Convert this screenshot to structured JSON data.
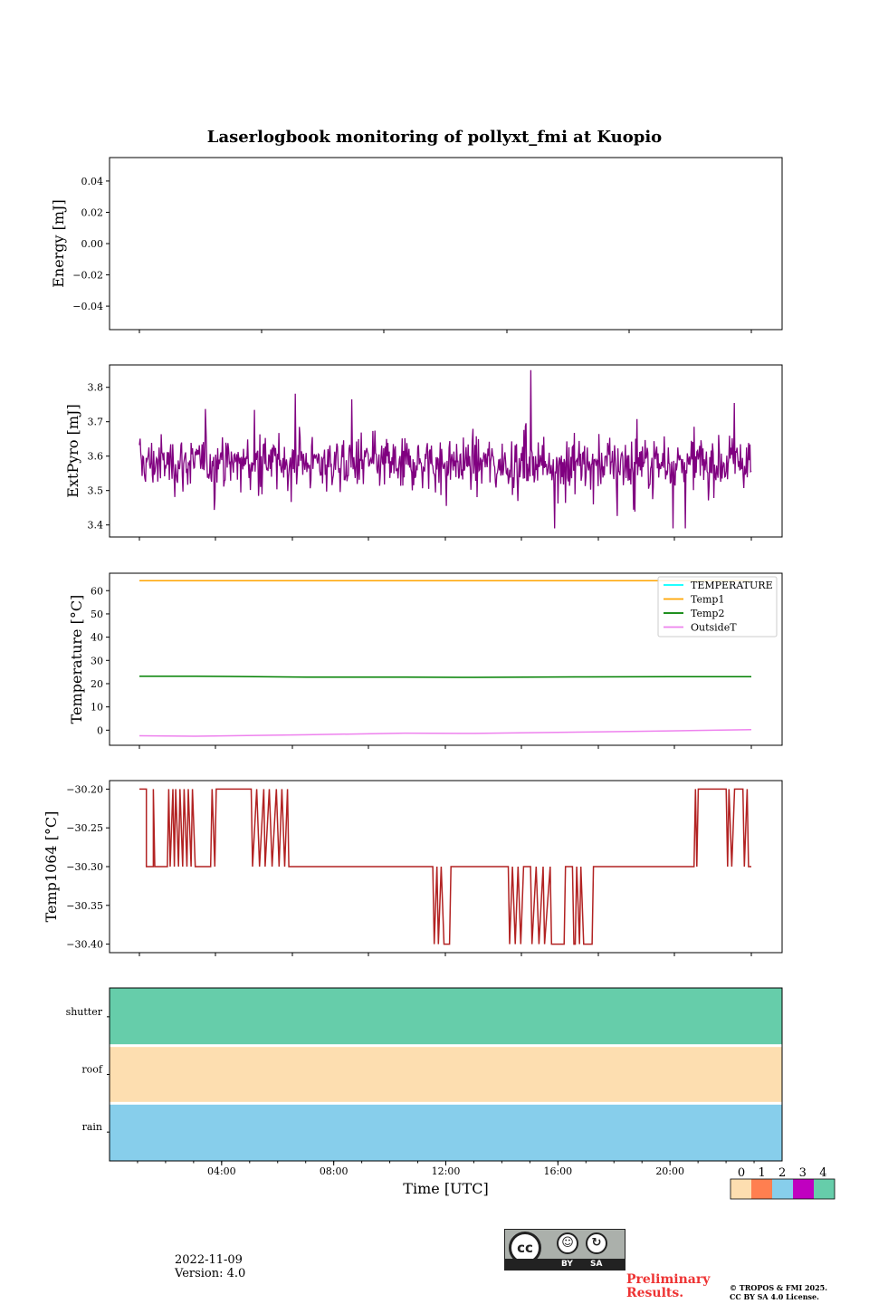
{
  "title": "Laserlogbook monitoring of pollyxt_fmi at Kuopio",
  "footer": {
    "date": "2022-11-09",
    "version": "Version: 4.0",
    "preliminary": "Preliminary\nResults.",
    "copyright": "© TROPOS & FMI 2025.\nCC BY SA 4.0 License.",
    "license_by": "BY",
    "license_sa": "SA",
    "license_cc": "cc"
  },
  "chart_data": [
    {
      "type": "line",
      "id": "energy",
      "ylabel": "Energy [mJ]",
      "ylim": [
        -0.055,
        0.055
      ],
      "yticks": [
        0.04,
        0.02,
        0.0,
        -0.02,
        -0.04
      ],
      "ytick_labels": [
        "0.04",
        "0.02",
        "0.00",
        "−0.02",
        "−0.04"
      ],
      "series": []
    },
    {
      "type": "line",
      "id": "extpyro",
      "ylabel": "ExtPyro [mJ]",
      "ylim": [
        3.365,
        3.865
      ],
      "yticks": [
        3.8,
        3.7,
        3.6,
        3.5,
        3.4
      ],
      "ytick_labels": [
        "3.8",
        "3.7",
        "3.6",
        "3.5",
        "3.4"
      ],
      "x_range_hours": [
        1.0,
        22.9
      ],
      "series": [
        {
          "name": "ExtPyro",
          "color": "#800080",
          "mean": 3.58,
          "min": 3.39,
          "max": 3.85,
          "n_samples": 900
        }
      ]
    },
    {
      "type": "line",
      "id": "temperature",
      "ylabel": "Temperature [°C]",
      "ylim": [
        -6.5,
        67.5
      ],
      "yticks": [
        60,
        50,
        40,
        30,
        20,
        10,
        0
      ],
      "ytick_labels": [
        "60",
        "50",
        "40",
        "30",
        "20",
        "10",
        "0"
      ],
      "x": [
        1,
        3,
        7,
        10.5,
        13,
        17,
        20,
        22.9
      ],
      "series": [
        {
          "name": "TEMPERATURE",
          "color": "#00ffff",
          "values": [
            null,
            null,
            null,
            null,
            null,
            null,
            null,
            null
          ]
        },
        {
          "name": "Temp1",
          "color": "#ffa500",
          "values": [
            64.3,
            64.3,
            64.3,
            64.3,
            64.3,
            64.3,
            64.3,
            64.3
          ]
        },
        {
          "name": "Temp2",
          "color": "#008000",
          "values": [
            23.2,
            23.2,
            22.8,
            22.8,
            22.7,
            22.9,
            23.0,
            23.0
          ]
        },
        {
          "name": "OutsideT",
          "color": "#ee82ee",
          "values": [
            -2.4,
            -2.6,
            -2.0,
            -1.3,
            -1.4,
            -0.8,
            -0.3,
            0.2
          ]
        }
      ],
      "legend": "top-right"
    },
    {
      "type": "line",
      "id": "temp1064",
      "ylabel": "Temp1064 [°C]",
      "ylim": [
        -30.411,
        -30.189
      ],
      "yticks": [
        -30.2,
        -30.25,
        -30.3,
        -30.35,
        -30.4
      ],
      "ytick_labels": [
        "−30.20",
        "−30.25",
        "−30.30",
        "−30.35",
        "−30.40"
      ],
      "series": [
        {
          "name": "Temp1064",
          "color": "#b22222",
          "step_points": [
            [
              1.0,
              -30.2
            ],
            [
              1.25,
              -30.2
            ],
            [
              1.25,
              -30.3
            ],
            [
              1.5,
              -30.3
            ],
            [
              1.5,
              -30.2
            ],
            [
              1.55,
              -30.3
            ],
            [
              2.0,
              -30.3
            ],
            [
              2.05,
              -30.2
            ],
            [
              2.1,
              -30.3
            ],
            [
              2.2,
              -30.2
            ],
            [
              2.25,
              -30.3
            ],
            [
              2.3,
              -30.2
            ],
            [
              2.4,
              -30.3
            ],
            [
              2.45,
              -30.2
            ],
            [
              2.55,
              -30.3
            ],
            [
              2.6,
              -30.2
            ],
            [
              2.7,
              -30.3
            ],
            [
              2.75,
              -30.2
            ],
            [
              2.85,
              -30.3
            ],
            [
              2.9,
              -30.2
            ],
            [
              3.0,
              -30.3
            ],
            [
              3.55,
              -30.3
            ],
            [
              3.6,
              -30.2
            ],
            [
              3.7,
              -30.3
            ],
            [
              3.75,
              -30.2
            ],
            [
              5.0,
              -30.2
            ],
            [
              5.05,
              -30.3
            ],
            [
              5.2,
              -30.2
            ],
            [
              5.3,
              -30.3
            ],
            [
              5.45,
              -30.2
            ],
            [
              5.5,
              -30.3
            ],
            [
              5.65,
              -30.2
            ],
            [
              5.75,
              -30.3
            ],
            [
              5.9,
              -30.2
            ],
            [
              6.0,
              -30.3
            ],
            [
              6.1,
              -30.2
            ],
            [
              6.2,
              -30.3
            ],
            [
              6.3,
              -30.2
            ],
            [
              6.35,
              -30.3
            ],
            [
              11.5,
              -30.3
            ],
            [
              11.55,
              -30.4
            ],
            [
              11.65,
              -30.3
            ],
            [
              11.7,
              -30.4
            ],
            [
              11.8,
              -30.3
            ],
            [
              11.9,
              -30.4
            ],
            [
              12.1,
              -30.4
            ],
            [
              12.15,
              -30.3
            ],
            [
              14.2,
              -30.3
            ],
            [
              14.25,
              -30.4
            ],
            [
              14.35,
              -30.3
            ],
            [
              14.45,
              -30.4
            ],
            [
              14.55,
              -30.3
            ],
            [
              14.65,
              -30.4
            ],
            [
              14.75,
              -30.3
            ],
            [
              15.0,
              -30.3
            ],
            [
              15.05,
              -30.4
            ],
            [
              15.2,
              -30.3
            ],
            [
              15.3,
              -30.4
            ],
            [
              15.45,
              -30.3
            ],
            [
              15.5,
              -30.4
            ],
            [
              15.7,
              -30.3
            ],
            [
              15.75,
              -30.4
            ],
            [
              16.2,
              -30.4
            ],
            [
              16.25,
              -30.3
            ],
            [
              16.5,
              -30.3
            ],
            [
              16.55,
              -30.4
            ],
            [
              16.6,
              -30.4
            ],
            [
              16.65,
              -30.3
            ],
            [
              16.75,
              -30.4
            ],
            [
              16.8,
              -30.3
            ],
            [
              16.9,
              -30.4
            ],
            [
              17.2,
              -30.4
            ],
            [
              17.25,
              -30.3
            ],
            [
              20.85,
              -30.3
            ],
            [
              20.9,
              -30.2
            ],
            [
              20.95,
              -30.3
            ],
            [
              21.0,
              -30.2
            ],
            [
              22.0,
              -30.2
            ],
            [
              22.05,
              -30.3
            ],
            [
              22.1,
              -30.2
            ],
            [
              22.2,
              -30.3
            ],
            [
              22.3,
              -30.2
            ],
            [
              22.6,
              -30.2
            ],
            [
              22.65,
              -30.3
            ],
            [
              22.75,
              -30.2
            ],
            [
              22.8,
              -30.3
            ],
            [
              22.9,
              -30.3
            ]
          ]
        }
      ]
    },
    {
      "type": "heatmap",
      "id": "status",
      "rows": [
        "shutter",
        "roof",
        "rain"
      ],
      "values": [
        4,
        0,
        2
      ],
      "xlabel": "Time [UTC]",
      "x_range_hours": [
        0,
        24
      ],
      "xticks_hours": [
        4,
        8,
        12,
        16,
        20
      ],
      "xtick_labels": [
        "04:00",
        "08:00",
        "12:00",
        "16:00",
        "20:00"
      ],
      "colorbar": {
        "labels": [
          "0",
          "1",
          "2",
          "3",
          "4"
        ],
        "colors": [
          "#fddeb0",
          "#ff7f50",
          "#87ceeb",
          "#c000c0",
          "#66cdaa"
        ]
      }
    }
  ]
}
